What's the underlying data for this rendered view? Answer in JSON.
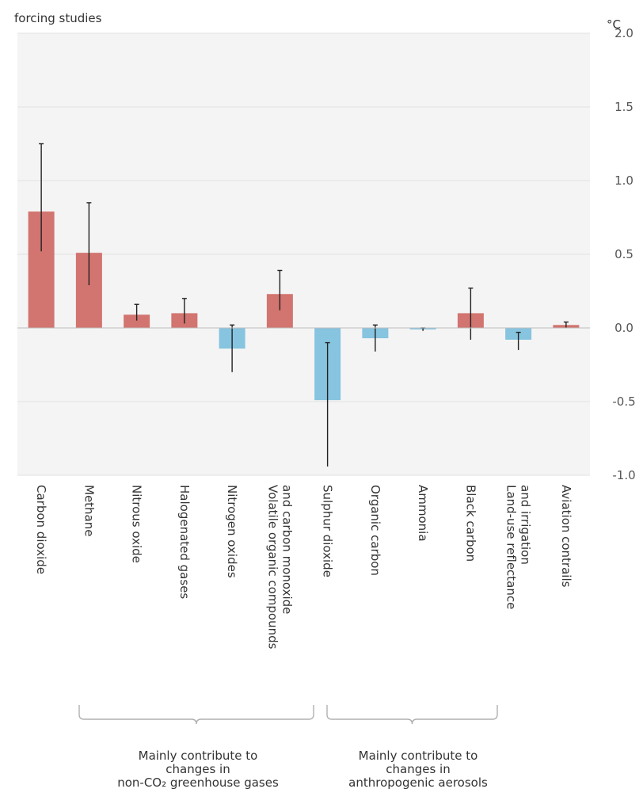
{
  "header": {
    "title_fragment": "forcing studies",
    "unit": "°C"
  },
  "colors": {
    "positive": "#d2746f",
    "negative": "#86c4e0",
    "plot_bg": "#f4f4f4",
    "grid": "#e2e2e2"
  },
  "chart_data": {
    "type": "bar",
    "ylim": [
      -1.0,
      2.0
    ],
    "yticks": [
      "2.0",
      "1.5",
      "1.0",
      "0.5",
      "0.0",
      "-0.5",
      "-1.0"
    ],
    "ytick_values": [
      2.0,
      1.5,
      1.0,
      0.5,
      0.0,
      -0.5,
      -1.0
    ],
    "categories": [
      [
        "Carbon dioxide"
      ],
      [
        "Methane"
      ],
      [
        "Nitrous oxide"
      ],
      [
        "Halogenated gases"
      ],
      [
        "Nitrogen oxides"
      ],
      [
        "Volatile organic compounds",
        "and carbon monoxide"
      ],
      [
        "Sulphur dioxide"
      ],
      [
        "Organic carbon"
      ],
      [
        "Ammonia"
      ],
      [
        "Black carbon"
      ],
      [
        "Land-use reflectance",
        "and irrigation"
      ],
      [
        "Aviation contrails"
      ]
    ],
    "values": [
      0.79,
      0.51,
      0.09,
      0.1,
      -0.14,
      0.23,
      -0.49,
      -0.07,
      -0.01,
      0.1,
      -0.08,
      0.02
    ],
    "error_low": [
      0.52,
      0.29,
      0.05,
      0.03,
      -0.3,
      0.12,
      -0.94,
      -0.16,
      -0.02,
      -0.08,
      -0.15,
      0.0
    ],
    "error_high": [
      1.25,
      0.85,
      0.16,
      0.2,
      0.02,
      0.39,
      -0.1,
      0.02,
      0.0,
      0.27,
      -0.03,
      0.04
    ],
    "grid": true
  },
  "groups": [
    {
      "lines": [
        "Mainly contribute to",
        "changes in",
        "non-CO₂ greenhouse gases"
      ]
    },
    {
      "lines": [
        "Mainly contribute to",
        "changes in",
        "anthropogenic aerosols"
      ]
    }
  ]
}
